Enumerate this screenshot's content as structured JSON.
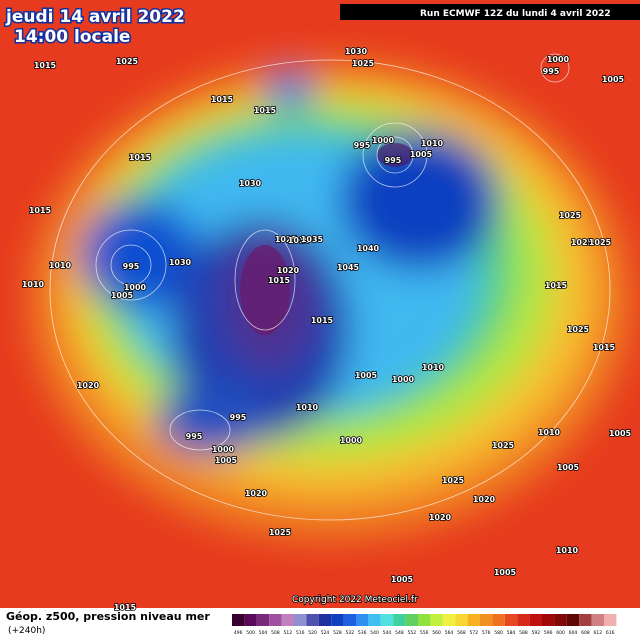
{
  "header": {
    "date": "jeudi 14 avril 2022",
    "time": "14:00 locale",
    "run": "Run ECMWF 12Z du lundi 4 avril 2022"
  },
  "isobar_labels": [
    "1015",
    "1025",
    "1015",
    "1015",
    "1030",
    "1025",
    "1000",
    "995",
    "1005",
    "1015",
    "995",
    "1000",
    "995",
    "1005",
    "1010",
    "1030",
    "1015",
    "995",
    "1010",
    "1030",
    "1010",
    "1000",
    "1005",
    "1025",
    "1010",
    "1035",
    "1020",
    "1015",
    "1045",
    "1040",
    "1025",
    "1025",
    "1025",
    "1015",
    "1015",
    "1025",
    "1015",
    "1020",
    "1005",
    "1000",
    "1010",
    "1010",
    "995",
    "995",
    "1000",
    "1005",
    "1000",
    "1025",
    "1010",
    "1005",
    "1005",
    "1020",
    "1025",
    "1020",
    "1020",
    "1025",
    "1010",
    "1005",
    "1005",
    "1015"
  ],
  "copyright": "Copyright 2022 Meteociel.fr",
  "footer": {
    "title": "Géop. z500, pression niveau mer",
    "lead": "(+240h)"
  },
  "color_scale": {
    "labels": [
      496,
      500,
      504,
      508,
      512,
      516,
      520,
      524,
      528,
      532,
      536,
      540,
      544,
      548,
      552,
      556,
      560,
      564,
      568,
      572,
      576,
      580,
      584,
      588,
      592,
      596,
      600,
      604,
      608,
      612,
      616
    ],
    "colors": [
      "#3a0030",
      "#5a0a5a",
      "#7a2a7a",
      "#a050a0",
      "#c080c0",
      "#9090d0",
      "#5050b0",
      "#2030a0",
      "#1040c0",
      "#2060e0",
      "#3090f0",
      "#40c0f0",
      "#50e0e0",
      "#40d0a0",
      "#60d060",
      "#90e040",
      "#c0f040",
      "#f0f040",
      "#f8d830",
      "#f8b020",
      "#f09020",
      "#f07020",
      "#e84820",
      "#d82818",
      "#c01010",
      "#a00808",
      "#800808",
      "#600808",
      "#a04040",
      "#d08080",
      "#f0b0b0"
    ]
  }
}
